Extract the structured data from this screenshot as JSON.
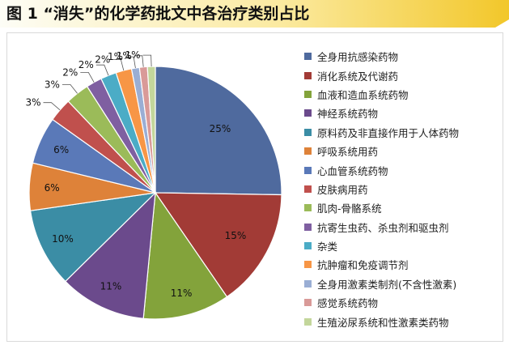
{
  "title": "图 1 “消失”的化学药批文中各治疗类别占比",
  "chart_data": {
    "type": "pie",
    "title": "图 1 “消失”的化学药批文中各治疗类别占比",
    "legend_position": "right",
    "slices": [
      {
        "label": "全身用抗感染药物",
        "value": 25,
        "data_label": "25%",
        "color": "#4f6a9e"
      },
      {
        "label": "消化系统及代谢药",
        "value": 15,
        "data_label": "15%",
        "color": "#a23b36"
      },
      {
        "label": "血液和造血系统药物",
        "value": 11,
        "data_label": "11%",
        "color": "#83a33b"
      },
      {
        "label": "神经系统药物",
        "value": 11,
        "data_label": "11%",
        "color": "#6b4a8c"
      },
      {
        "label": "原料药及非直接作用于人体药物",
        "value": 10,
        "data_label": "10%",
        "color": "#3b8da5"
      },
      {
        "label": "呼吸系统用药",
        "value": 6,
        "data_label": "6%",
        "color": "#de8239"
      },
      {
        "label": "心血管系统药物",
        "value": 6,
        "data_label": "6%",
        "color": "#5a79b8"
      },
      {
        "label": "皮肤病用药",
        "value": 3,
        "data_label": "3%",
        "color": "#c0504d"
      },
      {
        "label": "肌肉-骨骼系统",
        "value": 3,
        "data_label": "3%",
        "color": "#9bbb59"
      },
      {
        "label": "抗寄生虫药、杀虫剂和驱虫剂",
        "value": 2,
        "data_label": "2%",
        "color": "#7f5fa1"
      },
      {
        "label": "杂类",
        "value": 2,
        "data_label": "2%",
        "color": "#4bacc6"
      },
      {
        "label": "抗肿瘤和免疫调节剂",
        "value": 2,
        "data_label": "2%",
        "color": "#f79646"
      },
      {
        "label": "全身用激素类制剂(不含性激素)",
        "value": 1,
        "data_label": "1%",
        "color": "#9aaed4"
      },
      {
        "label": "感觉系统药物",
        "value": 1,
        "data_label": "1%",
        "color": "#d99a98"
      },
      {
        "label": "生殖泌尿系统和性激素类药物",
        "value": 1,
        "data_label": "1%",
        "color": "#c3d69b"
      }
    ]
  }
}
